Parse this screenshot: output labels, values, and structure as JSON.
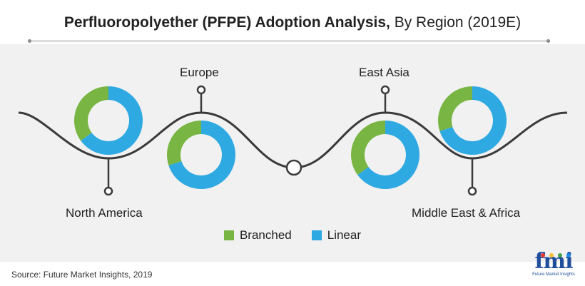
{
  "title": {
    "bold": "Perfluoropolyether (PFPE) Adoption Analysis,",
    "normal": " By Region (2019E)"
  },
  "colors": {
    "branched": "#78b542",
    "linear": "#2ea9e2",
    "curve": "#3a3a3a"
  },
  "chart_data": {
    "type": "pie",
    "subtype": "donut",
    "title": "Perfluoropolyether (PFPE) Adoption Analysis, By Region (2019E)",
    "series_names": [
      "Branched",
      "Linear"
    ],
    "regions": [
      {
        "name": "North America",
        "values": {
          "Branched": 35,
          "Linear": 65
        }
      },
      {
        "name": "Europe",
        "values": {
          "Branched": 30,
          "Linear": 70
        }
      },
      {
        "name": "East Asia",
        "values": {
          "Branched": 35,
          "Linear": 65
        }
      },
      {
        "name": "Middle East & Africa",
        "values": {
          "Branched": 30,
          "Linear": 70
        }
      }
    ],
    "legend": [
      "Branched",
      "Linear"
    ],
    "legend_position": "bottom-center"
  },
  "legend": {
    "branched": "Branched",
    "linear": "Linear"
  },
  "source": "Source: Future Market Insights, 2019",
  "logo": {
    "mark": "fmi",
    "subtitle": "Future Market Insights"
  }
}
